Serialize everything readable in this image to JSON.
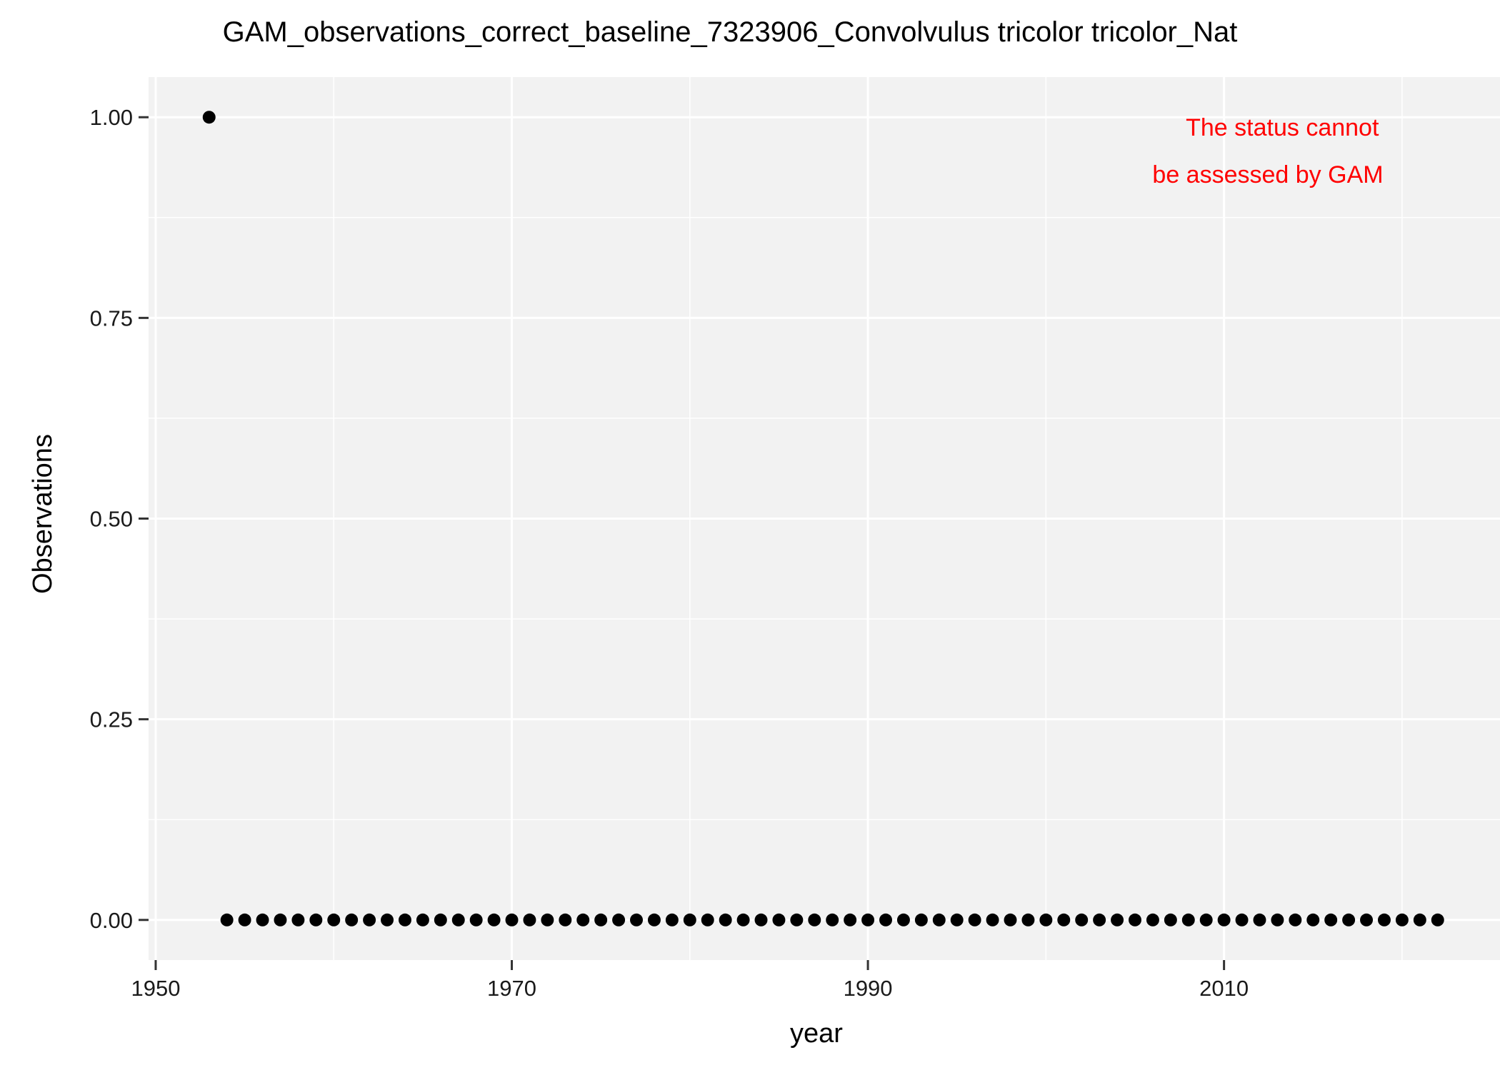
{
  "chart_data": {
    "type": "scatter",
    "title": "GAM_observations_correct_baseline_7323906_Convolvulus tricolor tricolor_Nat",
    "xlabel": "year",
    "ylabel": "Observations",
    "xlim": [
      1949.6,
      2025.5
    ],
    "ylim": [
      -0.05,
      1.05
    ],
    "x_ticks": [
      1950,
      1970,
      1990,
      2010
    ],
    "x_tick_labels": [
      "1950",
      "1970",
      "1990",
      "2010"
    ],
    "y_ticks": [
      0,
      0.25,
      0.5,
      0.75,
      1
    ],
    "y_tick_labels": [
      "0.00",
      "0.25",
      "0.50",
      "0.75",
      "1.00"
    ],
    "grid": true,
    "legend": "none",
    "annotation": {
      "lines": [
        "The status cannot",
        "be assessed by GAM"
      ],
      "color": "#ff0000"
    },
    "colors": {
      "panel": "#f2f2f2",
      "grid": "#ffffff",
      "point": "#000000",
      "text": "#000000"
    },
    "series": [
      {
        "x": [
          1953,
          1954,
          1955,
          1956,
          1957,
          1958,
          1959,
          1960,
          1961,
          1962,
          1963,
          1964,
          1965,
          1966,
          1967,
          1968,
          1969,
          1970,
          1971,
          1972,
          1973,
          1974,
          1975,
          1976,
          1977,
          1978,
          1979,
          1980,
          1981,
          1982,
          1983,
          1984,
          1985,
          1986,
          1987,
          1988,
          1989,
          1990,
          1991,
          1992,
          1993,
          1994,
          1995,
          1996,
          1997,
          1998,
          1999,
          2000,
          2001,
          2002,
          2003,
          2004,
          2005,
          2006,
          2007,
          2008,
          2009,
          2010,
          2011,
          2012,
          2013,
          2014,
          2015,
          2016,
          2017,
          2018,
          2019,
          2020,
          2021,
          2022
        ],
        "y": [
          1,
          0,
          0,
          0,
          0,
          0,
          0,
          0,
          0,
          0,
          0,
          0,
          0,
          0,
          0,
          0,
          0,
          0,
          0,
          0,
          0,
          0,
          0,
          0,
          0,
          0,
          0,
          0,
          0,
          0,
          0,
          0,
          0,
          0,
          0,
          0,
          0,
          0,
          0,
          0,
          0,
          0,
          0,
          0,
          0,
          0,
          0,
          0,
          0,
          0,
          0,
          0,
          0,
          0,
          0,
          0,
          0,
          0,
          0,
          0,
          0,
          0,
          0,
          0,
          0,
          0,
          0,
          0,
          0,
          0
        ]
      }
    ]
  }
}
